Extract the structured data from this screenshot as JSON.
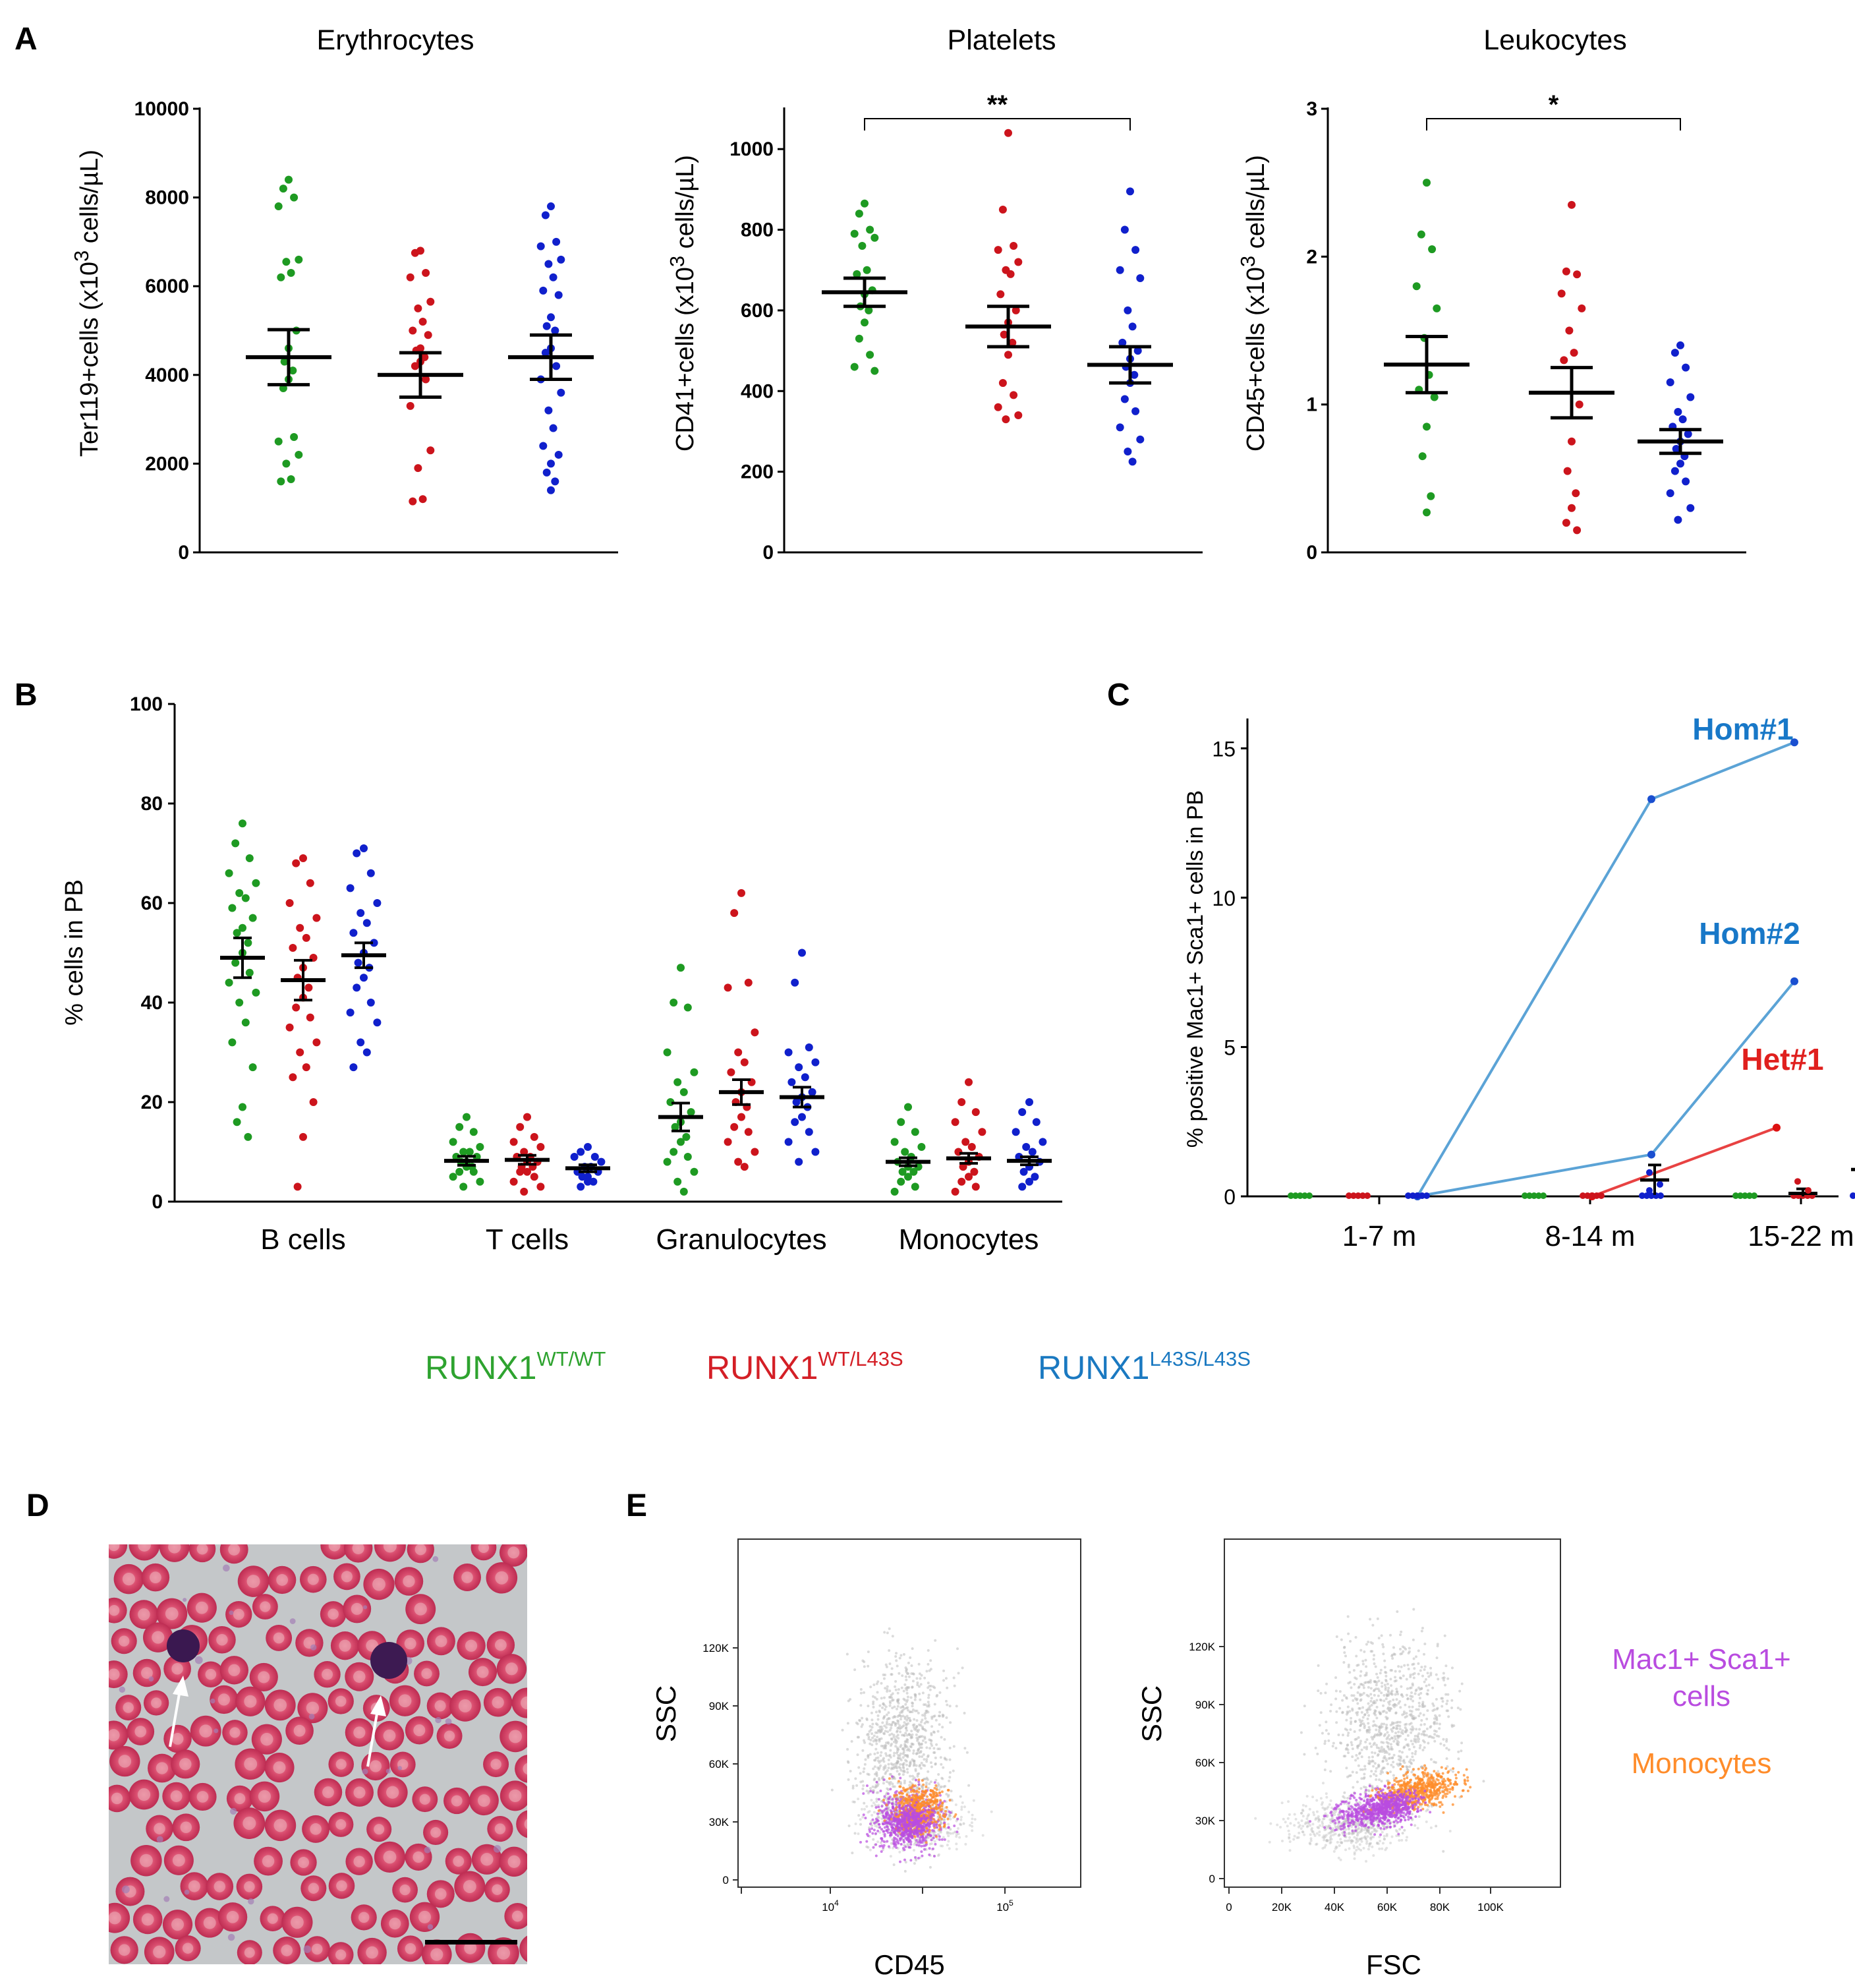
{
  "panel_labels": {
    "a": "A",
    "b": "B",
    "c": "C",
    "d": "D",
    "e": "E"
  },
  "colors": {
    "wt": "#1e9a22",
    "het": "#cc141c",
    "hom": "#1020cc",
    "line_hom": "#5ba3d6",
    "line_het": "#e84242",
    "label_hom": "#1878c8",
    "label_het": "#e0201e",
    "mac1": "#b94ce0",
    "mono": "#ff8c2a",
    "gray": "#b8b8b8"
  },
  "legend": {
    "wt": {
      "base": "RUNX1",
      "sup": "WT/WT",
      "color": "#2ea32f"
    },
    "het": {
      "base": "RUNX1",
      "sup": "WT/L43S",
      "color": "#d41f26"
    },
    "hom": {
      "base": "RUNX1",
      "sup": "L43S/L43S",
      "color": "#1a79c1"
    }
  },
  "chart_data": [
    {
      "id": "A1",
      "type": "scatter",
      "title": "Erythrocytes",
      "ylabel": "Ter119+cells (x10",
      "ylabel_sup": "3",
      "ylabel_tail": " cells/µL)",
      "ylim": [
        0,
        10000
      ],
      "yticks": [
        0,
        2000,
        4000,
        6000,
        8000,
        10000
      ],
      "ytick_labels": [
        "0",
        "2000",
        "4000",
        "6000",
        "8000",
        "10000"
      ],
      "groups": [
        {
          "name": "WT/WT",
          "mean": 4400,
          "sem": 620,
          "values": [
            8400,
            8200,
            8000,
            7800,
            6600,
            6550,
            6300,
            6200,
            5000,
            4600,
            4300,
            4100,
            3900,
            3700,
            2600,
            2500,
            2200,
            2000,
            1650,
            1600
          ]
        },
        {
          "name": "WT/L43S",
          "mean": 4000,
          "sem": 500,
          "values": [
            6800,
            6750,
            6300,
            6200,
            5650,
            5500,
            5200,
            5000,
            4900,
            4600,
            4550,
            4400,
            4300,
            4200,
            3900,
            3300,
            2300,
            1900,
            1200,
            1150
          ]
        },
        {
          "name": "L43S/L43S",
          "mean": 4400,
          "sem": 500,
          "values": [
            7800,
            7600,
            7000,
            6900,
            6600,
            6500,
            6200,
            5900,
            5800,
            5300,
            5100,
            5000,
            4600,
            4500,
            4200,
            3900,
            3600,
            3200,
            2800,
            2400,
            2200,
            2000,
            1800,
            1600,
            1400
          ]
        }
      ]
    },
    {
      "id": "A2",
      "type": "scatter",
      "title": "Platelets",
      "ylabel": "CD41+cells (x10",
      "ylabel_sup": "3",
      "ylabel_tail": " cells/µL)",
      "ylim": [
        0,
        1100
      ],
      "yticks": [
        0,
        200,
        400,
        600,
        800,
        1000
      ],
      "ytick_labels": [
        "0",
        "200",
        "400",
        "600",
        "800",
        "1000"
      ],
      "significance": {
        "label": "**",
        "from": 0,
        "to": 2
      },
      "groups": [
        {
          "name": "WT/WT",
          "mean": 645,
          "sem": 35,
          "values": [
            865,
            840,
            800,
            790,
            780,
            760,
            700,
            690,
            650,
            640,
            610,
            600,
            570,
            530,
            490,
            460,
            450
          ]
        },
        {
          "name": "WT/L43S",
          "mean": 560,
          "sem": 50,
          "values": [
            1040,
            850,
            760,
            750,
            720,
            700,
            690,
            640,
            600,
            570,
            540,
            520,
            490,
            420,
            390,
            360,
            340,
            330
          ]
        },
        {
          "name": "L43S/L43S",
          "mean": 465,
          "sem": 45,
          "values": [
            895,
            800,
            750,
            700,
            680,
            600,
            560,
            520,
            500,
            480,
            460,
            440,
            420,
            380,
            350,
            310,
            280,
            250,
            225
          ]
        }
      ]
    },
    {
      "id": "A3",
      "type": "scatter",
      "title": "Leukocytes",
      "ylabel": "CD45+cells (x10",
      "ylabel_sup": "3",
      "ylabel_tail": " cells/µL)",
      "ylim": [
        0,
        3
      ],
      "yticks": [
        0,
        1,
        2,
        3
      ],
      "ytick_labels": [
        "0",
        "1",
        "2",
        "3"
      ],
      "significance": {
        "label": "*",
        "from": 0,
        "to": 2
      },
      "groups": [
        {
          "name": "WT/WT",
          "mean": 1.27,
          "sem": 0.19,
          "values": [
            2.5,
            2.15,
            2.05,
            1.8,
            1.65,
            1.45,
            1.2,
            1.1,
            1.05,
            0.85,
            0.65,
            0.38,
            0.27
          ]
        },
        {
          "name": "WT/L43S",
          "mean": 1.08,
          "sem": 0.17,
          "values": [
            2.35,
            1.9,
            1.88,
            1.75,
            1.65,
            1.5,
            1.35,
            1.3,
            1.0,
            0.75,
            0.55,
            0.4,
            0.3,
            0.2,
            0.15
          ]
        },
        {
          "name": "L43S/L43S",
          "mean": 0.75,
          "sem": 0.08,
          "values": [
            1.4,
            1.35,
            1.25,
            1.15,
            1.05,
            0.95,
            0.9,
            0.85,
            0.8,
            0.75,
            0.7,
            0.65,
            0.6,
            0.55,
            0.48,
            0.4,
            0.3,
            0.22
          ]
        }
      ]
    },
    {
      "id": "B",
      "type": "scatter",
      "title": "",
      "ylabel": "% cells in PB",
      "ylim": [
        0,
        100
      ],
      "yticks": [
        0,
        20,
        40,
        60,
        80,
        100
      ],
      "ytick_labels": [
        "0",
        "20",
        "40",
        "60",
        "80",
        "100"
      ],
      "categories": [
        "B cells",
        "T cells",
        "Granulocytes",
        "Monocytes"
      ],
      "groups": [
        {
          "category": "B cells",
          "name": "WT/WT",
          "mean": 49,
          "sem": 4,
          "values": [
            76,
            72,
            69,
            66,
            64,
            62,
            61,
            59,
            57,
            55,
            54,
            52,
            50,
            48,
            46,
            44,
            42,
            40,
            36,
            32,
            27,
            19,
            16,
            13
          ]
        },
        {
          "category": "B cells",
          "name": "WT/L43S",
          "mean": 44.5,
          "sem": 4,
          "values": [
            69,
            68,
            64,
            60,
            57,
            55,
            53,
            51,
            49,
            47,
            45,
            43,
            41,
            39,
            37,
            35,
            32,
            30,
            27,
            25,
            20,
            13,
            3
          ]
        },
        {
          "category": "B cells",
          "name": "L43S/L43S",
          "mean": 49.5,
          "sem": 2.5,
          "values": [
            71,
            70,
            66,
            63,
            60,
            58,
            56,
            54,
            52,
            50,
            48,
            47,
            45,
            43,
            40,
            38,
            36,
            32,
            30,
            27
          ]
        },
        {
          "category": "T cells",
          "name": "WT/WT",
          "mean": 8.2,
          "sem": 0.9,
          "values": [
            17,
            15,
            14,
            12,
            11,
            10,
            10,
            9,
            9,
            8,
            8,
            7,
            7,
            6,
            6,
            5,
            4,
            3
          ]
        },
        {
          "category": "T cells",
          "name": "WT/L43S",
          "mean": 8.4,
          "sem": 0.9,
          "values": [
            17,
            15,
            13,
            12,
            11,
            10,
            9,
            9,
            8,
            8,
            7,
            7,
            6,
            6,
            5,
            4,
            3,
            2
          ]
        },
        {
          "category": "T cells",
          "name": "L43S/L43S",
          "mean": 6.7,
          "sem": 0.7,
          "values": [
            11,
            10,
            9,
            9,
            8,
            7,
            7,
            6,
            6,
            5,
            5,
            4,
            4,
            3
          ]
        },
        {
          "category": "Granulocytes",
          "name": "WT/WT",
          "mean": 17,
          "sem": 2.8,
          "values": [
            47,
            40,
            39,
            30,
            26,
            24,
            22,
            20,
            18,
            16,
            15,
            13,
            12,
            10,
            9,
            8,
            6,
            4,
            2
          ]
        },
        {
          "category": "Granulocytes",
          "name": "WT/L43S",
          "mean": 22,
          "sem": 2.5,
          "values": [
            62,
            58,
            44,
            43,
            34,
            30,
            28,
            26,
            24,
            22,
            20,
            19,
            17,
            15,
            14,
            12,
            10,
            8,
            7
          ]
        },
        {
          "category": "Granulocytes",
          "name": "L43S/L43S",
          "mean": 21,
          "sem": 2,
          "values": [
            50,
            44,
            31,
            30,
            28,
            27,
            25,
            24,
            22,
            21,
            20,
            19,
            17,
            16,
            14,
            12,
            10,
            8
          ]
        },
        {
          "category": "Monocytes",
          "name": "WT/WT",
          "mean": 8,
          "sem": 0.8,
          "values": [
            19,
            16,
            14,
            12,
            11,
            10,
            9,
            8,
            7,
            7,
            6,
            6,
            5,
            4,
            3,
            2
          ]
        },
        {
          "category": "Monocytes",
          "name": "WT/L43S",
          "mean": 8.7,
          "sem": 1,
          "values": [
            24,
            20,
            18,
            16,
            14,
            12,
            11,
            10,
            9,
            8,
            7,
            6,
            5,
            4,
            3,
            2
          ]
        },
        {
          "category": "Monocytes",
          "name": "L43S/L43S",
          "mean": 8.2,
          "sem": 0.8,
          "values": [
            20,
            18,
            16,
            14,
            12,
            11,
            10,
            9,
            8,
            7,
            6,
            5,
            4,
            3
          ]
        }
      ]
    },
    {
      "id": "C",
      "type": "line",
      "ylabel": "% positive Mac1+ Sca1+ cells in PB",
      "ylim": [
        0,
        16
      ],
      "yticks": [
        0,
        5,
        10,
        15
      ],
      "ytick_labels": [
        "0",
        "5",
        "10",
        "15"
      ],
      "categories": [
        "1-7 m",
        "8-14 m",
        "15-22 m"
      ],
      "lines": [
        {
          "name": "Hom#1",
          "points": [
            [
              0,
              0
            ],
            [
              1,
              13.3
            ],
            [
              2,
              15.2
            ]
          ],
          "color": "#5ba3d6"
        },
        {
          "name": "Hom#2",
          "points": [
            [
              0,
              0
            ],
            [
              1,
              1.4
            ],
            [
              2,
              7.2
            ]
          ],
          "color": "#5ba3d6"
        },
        {
          "name": "Het#1",
          "points": [
            [
              1,
              0
            ],
            [
              2,
              2.3
            ]
          ],
          "color": "#e84242"
        }
      ],
      "annotations": [
        {
          "text": "Hom#1",
          "color": "#1878c8"
        },
        {
          "text": "Hom#2",
          "color": "#1878c8"
        },
        {
          "text": "Het#1",
          "color": "#e0201e"
        }
      ],
      "group_means": [
        {
          "category": "1-7 m",
          "wt": 0,
          "het": 0,
          "hom": 0
        },
        {
          "category": "8-14 m",
          "wt": 0,
          "het": 0,
          "hom": 0.55,
          "hom_sem": 0.5
        },
        {
          "category": "15-22 m",
          "wt": 0,
          "het": 0.1,
          "hom": 0.9,
          "hom_sem": 0.6
        }
      ]
    },
    {
      "id": "E1",
      "type": "scatter",
      "title": "",
      "xlabel": "CD45",
      "ylabel": "SSC",
      "yticks_labels": [
        "0",
        "30K",
        "60K",
        "90K",
        "120K"
      ],
      "xticks_labels": [
        "10",
        "4",
        "10",
        "5"
      ]
    },
    {
      "id": "E2",
      "type": "scatter",
      "title": "",
      "xlabel": "FSC",
      "ylabel": "SSC",
      "yticks_labels": [
        "0",
        "30K",
        "60K",
        "90K",
        "120K"
      ],
      "xticks_labels": [
        "0",
        "20K",
        "40K",
        "60K",
        "80K",
        "100K"
      ]
    }
  ],
  "e_legend": {
    "line1": "Mac1+ Sca1+",
    "line2": "cells",
    "line3": "Monocytes"
  }
}
